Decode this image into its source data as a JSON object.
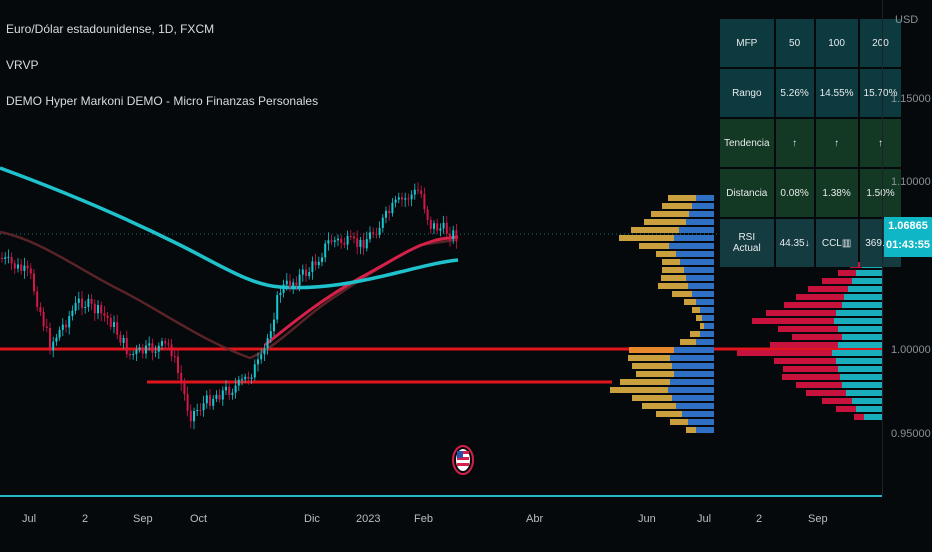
{
  "legend": {
    "symbol": "Euro/Dólar estadounidense, 1D, FXCM",
    "indicator1": "VRVP",
    "indicator2": "DEMO Hyper Markoni DEMO - Micro Finanzas Personales"
  },
  "price_axis": {
    "currency": "USD",
    "ticks": [
      "1.15000",
      "1.10000",
      "1.00000",
      "0.95000"
    ],
    "last_price": "1.06865",
    "countdown": "01:43:55"
  },
  "time_axis": {
    "ticks": [
      "Jul",
      "2",
      "Sep",
      "Oct",
      "Dic",
      "2023",
      "Feb",
      "Abr",
      "Jun",
      "Jul",
      "2",
      "Sep"
    ]
  },
  "table": {
    "header": [
      "MFP",
      "50",
      "100",
      "200"
    ],
    "rango": [
      "Rango",
      "5.26%",
      "14.55%",
      "15.70%"
    ],
    "tendencia": [
      "Tendencia",
      "↑",
      "↑",
      "↑"
    ],
    "distancia": [
      "Distancia",
      "0.08%",
      "1.38%",
      "1.50%"
    ],
    "rsi": [
      "RSI Actual",
      "44.35↓",
      "CCL▥",
      "369.92"
    ]
  },
  "colors": {
    "background": "#05090b",
    "accent": "#0fb6c6",
    "ma_fast": "#d6204a",
    "ma_slow": "#1fc2cc",
    "support": "#e1151b",
    "up_candle": "#18c6d0",
    "down_candle": "#d4174a"
  },
  "icons": {
    "flag": "us-flag-icon"
  }
}
